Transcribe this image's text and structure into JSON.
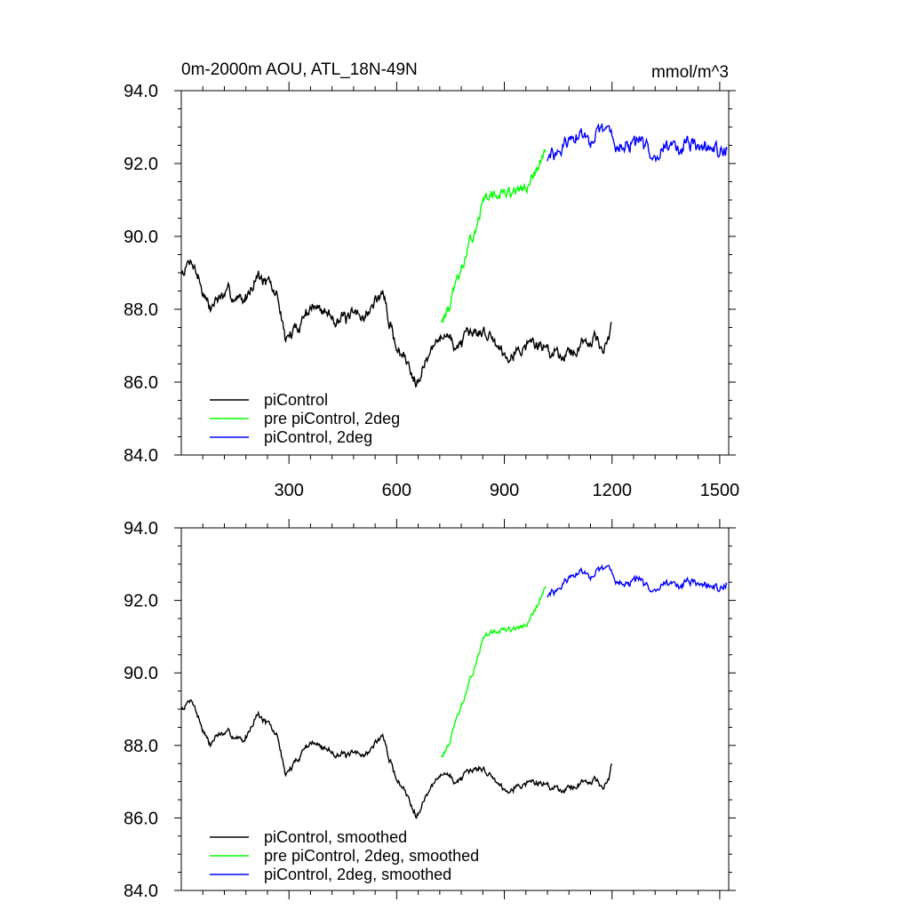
{
  "title_left": "0m-2000m AOU, ATL_18N-49N",
  "title_right": "mmol/m^3",
  "chart_data": [
    {
      "type": "line",
      "name": "raw",
      "xlim": [
        0,
        1525
      ],
      "ylim": [
        84.0,
        94.0
      ],
      "x_ticks": [
        300,
        600,
        900,
        1200,
        1500
      ],
      "x_tick_labels": [
        "300",
        "600",
        "900",
        "1200",
        "1500"
      ],
      "y_ticks": [
        84.0,
        86.0,
        88.0,
        90.0,
        92.0,
        94.0
      ],
      "y_tick_labels": [
        "84.0",
        "86.0",
        "88.0",
        "90.0",
        "92.0",
        "94.0"
      ],
      "legend": [
        "piControl",
        "pre piControl, 2deg",
        "piControl, 2deg"
      ],
      "series": [
        {
          "name": "piControl",
          "color": "#000000",
          "x_start": 1,
          "x_end": 1200,
          "anchors": [
            [
              1,
              89.0
            ],
            [
              30,
              89.4
            ],
            [
              50,
              88.8
            ],
            [
              80,
              88.0
            ],
            [
              100,
              88.3
            ],
            [
              140,
              88.4
            ],
            [
              175,
              88.2
            ],
            [
              210,
              89.0
            ],
            [
              240,
              88.7
            ],
            [
              270,
              88.3
            ],
            [
              290,
              87.2
            ],
            [
              310,
              87.3
            ],
            [
              340,
              87.8
            ],
            [
              360,
              88.1
            ],
            [
              400,
              87.9
            ],
            [
              430,
              87.8
            ],
            [
              460,
              87.7
            ],
            [
              520,
              87.9
            ],
            [
              560,
              88.5
            ],
            [
              580,
              87.6
            ],
            [
              600,
              87.0
            ],
            [
              630,
              86.5
            ],
            [
              655,
              86.1
            ],
            [
              680,
              86.6
            ],
            [
              710,
              87.0
            ],
            [
              730,
              87.4
            ],
            [
              760,
              87.0
            ],
            [
              800,
              87.2
            ],
            [
              830,
              87.4
            ],
            [
              860,
              87.3
            ],
            [
              900,
              86.8
            ],
            [
              940,
              86.9
            ],
            [
              980,
              87.1
            ],
            [
              1020,
              86.9
            ],
            [
              1060,
              86.8
            ],
            [
              1100,
              86.9
            ],
            [
              1150,
              87.3
            ],
            [
              1175,
              86.8
            ],
            [
              1190,
              87.1
            ],
            [
              1200,
              87.6
            ]
          ],
          "noise": 0.3,
          "seed": 7
        },
        {
          "name": "pre piControl, 2deg",
          "color": "#00ff00",
          "x_start": 725,
          "x_end": 1015,
          "anchors": [
            [
              725,
              87.7
            ],
            [
              745,
              88.0
            ],
            [
              770,
              88.8
            ],
            [
              800,
              89.6
            ],
            [
              820,
              90.3
            ],
            [
              840,
              90.9
            ],
            [
              860,
              91.1
            ],
            [
              900,
              91.2
            ],
            [
              940,
              91.2
            ],
            [
              960,
              91.3
            ],
            [
              990,
              91.8
            ],
            [
              1015,
              92.4
            ]
          ],
          "noise": 0.25,
          "seed": 13
        },
        {
          "name": "piControl, 2deg",
          "color": "#0000ff",
          "x_start": 1020,
          "x_end": 1520,
          "anchors": [
            [
              1020,
              92.1
            ],
            [
              1050,
              92.3
            ],
            [
              1080,
              92.6
            ],
            [
              1110,
              92.8
            ],
            [
              1140,
              92.7
            ],
            [
              1170,
              92.8
            ],
            [
              1190,
              92.9
            ],
            [
              1210,
              92.6
            ],
            [
              1240,
              92.4
            ],
            [
              1270,
              92.6
            ],
            [
              1300,
              92.3
            ],
            [
              1340,
              92.5
            ],
            [
              1380,
              92.4
            ],
            [
              1420,
              92.5
            ],
            [
              1460,
              92.4
            ],
            [
              1500,
              92.3
            ],
            [
              1520,
              92.5
            ]
          ],
          "noise": 0.35,
          "seed": 29
        }
      ]
    },
    {
      "type": "line",
      "name": "smoothed",
      "xlim": [
        0,
        1525
      ],
      "ylim": [
        84.0,
        94.0
      ],
      "x_ticks": [
        300,
        600,
        900,
        1200,
        1500
      ],
      "x_tick_labels": [],
      "y_ticks": [
        84.0,
        86.0,
        88.0,
        90.0,
        92.0,
        94.0
      ],
      "y_tick_labels": [
        "84.0",
        "86.0",
        "88.0",
        "90.0",
        "92.0",
        "94.0"
      ],
      "legend": [
        "piControl, smoothed",
        "pre piControl, 2deg, smoothed",
        "piControl, 2deg, smoothed"
      ],
      "series": [
        {
          "name": "piControl, smoothed",
          "color": "#000000",
          "x_start": 1,
          "x_end": 1200,
          "anchors": [
            [
              1,
              89.0
            ],
            [
              30,
              89.3
            ],
            [
              50,
              88.7
            ],
            [
              80,
              88.0
            ],
            [
              100,
              88.3
            ],
            [
              140,
              88.3
            ],
            [
              175,
              88.1
            ],
            [
              210,
              88.9
            ],
            [
              240,
              88.6
            ],
            [
              270,
              88.2
            ],
            [
              290,
              87.2
            ],
            [
              310,
              87.4
            ],
            [
              340,
              87.9
            ],
            [
              360,
              88.1
            ],
            [
              400,
              87.9
            ],
            [
              430,
              87.8
            ],
            [
              460,
              87.7
            ],
            [
              520,
              87.8
            ],
            [
              560,
              88.3
            ],
            [
              580,
              87.6
            ],
            [
              600,
              87.1
            ],
            [
              630,
              86.6
            ],
            [
              655,
              86.1
            ],
            [
              680,
              86.6
            ],
            [
              710,
              87.0
            ],
            [
              730,
              87.3
            ],
            [
              760,
              87.0
            ],
            [
              800,
              87.2
            ],
            [
              830,
              87.4
            ],
            [
              860,
              87.2
            ],
            [
              900,
              86.8
            ],
            [
              940,
              86.9
            ],
            [
              980,
              87.0
            ],
            [
              1020,
              86.9
            ],
            [
              1060,
              86.8
            ],
            [
              1100,
              86.9
            ],
            [
              1150,
              87.1
            ],
            [
              1175,
              86.8
            ],
            [
              1190,
              87.0
            ],
            [
              1200,
              87.5
            ]
          ],
          "noise": 0.15,
          "seed": 7
        },
        {
          "name": "pre piControl, 2deg, smoothed",
          "color": "#00ff00",
          "x_start": 725,
          "x_end": 1015,
          "anchors": [
            [
              725,
              87.7
            ],
            [
              745,
              88.0
            ],
            [
              770,
              88.8
            ],
            [
              800,
              89.6
            ],
            [
              820,
              90.3
            ],
            [
              840,
              90.9
            ],
            [
              860,
              91.1
            ],
            [
              900,
              91.2
            ],
            [
              940,
              91.2
            ],
            [
              960,
              91.3
            ],
            [
              990,
              91.8
            ],
            [
              1015,
              92.4
            ]
          ],
          "noise": 0.12,
          "seed": 13
        },
        {
          "name": "piControl, 2deg, smoothed",
          "color": "#0000ff",
          "x_start": 1020,
          "x_end": 1520,
          "anchors": [
            [
              1020,
              92.1
            ],
            [
              1050,
              92.3
            ],
            [
              1080,
              92.6
            ],
            [
              1110,
              92.8
            ],
            [
              1140,
              92.7
            ],
            [
              1170,
              92.8
            ],
            [
              1190,
              92.9
            ],
            [
              1210,
              92.6
            ],
            [
              1240,
              92.4
            ],
            [
              1270,
              92.6
            ],
            [
              1300,
              92.3
            ],
            [
              1340,
              92.5
            ],
            [
              1380,
              92.4
            ],
            [
              1420,
              92.5
            ],
            [
              1460,
              92.4
            ],
            [
              1500,
              92.3
            ],
            [
              1520,
              92.5
            ]
          ],
          "noise": 0.17,
          "seed": 29
        }
      ]
    }
  ]
}
